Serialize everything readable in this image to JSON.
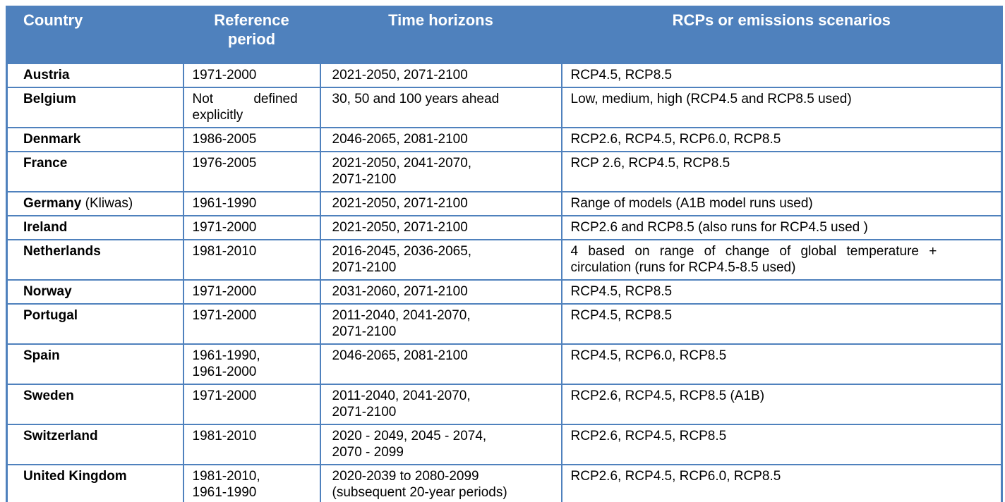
{
  "table": {
    "columns": [
      "Country",
      "Reference period",
      "Time horizons",
      "RCPs or emissions scenarios"
    ],
    "rows": [
      {
        "country": "Austria",
        "suffix": "",
        "reference_period": "1971-2000",
        "time_horizons": "2021-2050, 2071-2100",
        "rcps": "RCP4.5, RCP8.5"
      },
      {
        "country": "Belgium",
        "suffix": "",
        "reference_period": "Not defined\nexplicitly",
        "time_horizons": "30, 50 and 100 years ahead",
        "rcps": "Low, medium, high (RCP4.5 and RCP8.5 used)"
      },
      {
        "country": "Denmark",
        "suffix": "",
        "reference_period": "1986-2005",
        "time_horizons": "2046-2065, 2081-2100",
        "rcps": "RCP2.6, RCP4.5, RCP6.0, RCP8.5"
      },
      {
        "country": "France",
        "suffix": "",
        "reference_period": "1976-2005",
        "time_horizons": "2021-2050, 2041-2070,\n2071-2100",
        "rcps": "RCP 2.6, RCP4.5, RCP8.5"
      },
      {
        "country": "Germany",
        "suffix": "(Kliwas)",
        "reference_period": "1961-1990",
        "time_horizons": "2021-2050, 2071-2100",
        "rcps": "Range of models (A1B model runs used)"
      },
      {
        "country": "Ireland",
        "suffix": "",
        "reference_period": "1971-2000",
        "time_horizons": "2021-2050, 2071-2100",
        "rcps": "RCP2.6 and RCP8.5 (also runs for RCP4.5 used )"
      },
      {
        "country": "Netherlands",
        "suffix": "",
        "reference_period": "1981-2010",
        "time_horizons": "2016-2045, 2036-2065,\n2071-2100",
        "rcps": "4 based on range of change of global temperature +\ncirculation (runs for RCP4.5-8.5 used)"
      },
      {
        "country": "Norway",
        "suffix": "",
        "reference_period": "1971-2000",
        "time_horizons": "2031-2060, 2071-2100",
        "rcps": "RCP4.5, RCP8.5"
      },
      {
        "country": "Portugal",
        "suffix": "",
        "reference_period": "1971-2000",
        "time_horizons": "2011-2040, 2041-2070,\n2071-2100",
        "rcps": "RCP4.5, RCP8.5"
      },
      {
        "country": "Spain",
        "suffix": "",
        "reference_period": "1961-1990,\n1961-2000",
        "time_horizons": "2046-2065, 2081-2100",
        "rcps": "RCP4.5, RCP6.0, RCP8.5"
      },
      {
        "country": "Sweden",
        "suffix": "",
        "reference_period": "1971-2000",
        "time_horizons": "2011-2040, 2041-2070,\n2071-2100",
        "rcps": "RCP2.6, RCP4.5, RCP8.5 (A1B)"
      },
      {
        "country": "Switzerland",
        "suffix": "",
        "reference_period": "1981-2010",
        "time_horizons": "2020 - 2049, 2045 - 2074,\n2070 - 2099",
        "rcps": "RCP2.6, RCP4.5, RCP8.5"
      },
      {
        "country": "United Kingdom",
        "suffix": "",
        "reference_period": "1981-2010,\n1961-1990",
        "time_horizons": "2020-2039 to 2080-2099\n(subsequent 20-year periods)",
        "rcps": "RCP2.6, RCP4.5, RCP6.0, RCP8.5"
      }
    ]
  },
  "colors": {
    "header_bg": "#4f81bd",
    "header_text": "#ffffff",
    "border": "#4f81bd",
    "body_text": "#000000",
    "row_bg": "#ffffff"
  }
}
